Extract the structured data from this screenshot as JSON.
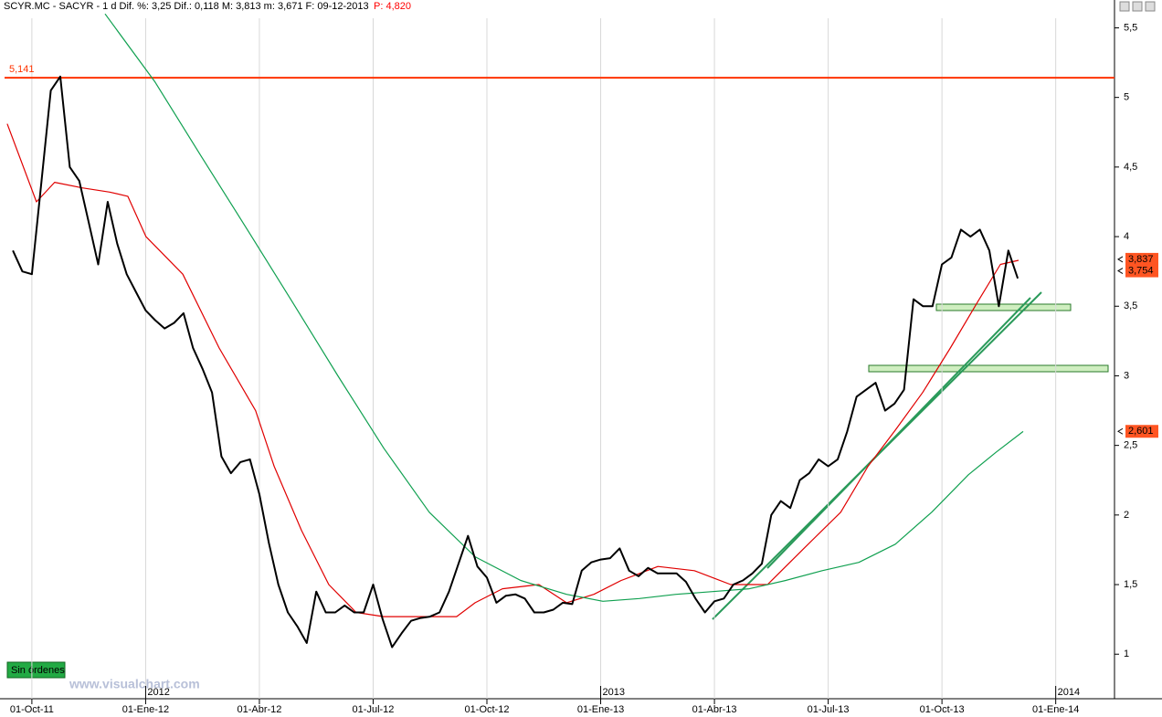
{
  "chart_data": {
    "type": "line",
    "title": "SCYR.MC - SACYR - 1 d Dif. %: 3,25 Dif.: 0,118 M: 3,813 m: 3,671 F: 09-12-2013",
    "subtitle": "P: 4,820",
    "status": "Sin órdenes",
    "watermark": "www.visualchart.com",
    "xlim": [
      -0.72,
      28.55
    ],
    "xticks": [
      {
        "value": 0,
        "label": "01-Oct-11"
      },
      {
        "value": 3,
        "label": "01-Ene-12"
      },
      {
        "value": 6,
        "label": "01-Abr-12"
      },
      {
        "value": 9,
        "label": "01-Jul-12"
      },
      {
        "value": 12,
        "label": "01-Oct-12"
      },
      {
        "value": 15,
        "label": "01-Ene-13"
      },
      {
        "value": 18,
        "label": "01-Abr-13"
      },
      {
        "value": 21,
        "label": "01-Jul-13"
      },
      {
        "value": 24,
        "label": "01-Oct-13"
      },
      {
        "value": 27,
        "label": "01-Ene-14"
      }
    ],
    "year_labels": [
      {
        "value": 3,
        "label": "2012"
      },
      {
        "value": 15,
        "label": "2013"
      },
      {
        "value": 27,
        "label": "2014"
      }
    ],
    "ylim": [
      0.68,
      5.7
    ],
    "yticks": [
      1,
      {
        "value": 1.5,
        "label": "1,5"
      },
      2,
      {
        "value": 2.5,
        "label": "2,5"
      },
      3,
      {
        "value": 3.5,
        "label": "3,5"
      },
      4,
      {
        "value": 4.5,
        "label": "4,5"
      },
      5,
      {
        "value": 5.5,
        "label": "5,5"
      }
    ],
    "grid": "x",
    "series": [
      {
        "name": "SCYR.MC",
        "color": "#000000",
        "x": [
          -0.5,
          -0.25,
          0,
          0.25,
          0.5,
          0.75,
          1,
          1.25,
          1.5,
          1.75,
          2,
          2.25,
          2.5,
          2.75,
          3,
          3.25,
          3.5,
          3.75,
          4,
          4.25,
          4.5,
          4.75,
          5,
          5.25,
          5.5,
          5.75,
          6,
          6.25,
          6.5,
          6.75,
          7,
          7.25,
          7.5,
          7.75,
          8,
          8.25,
          8.5,
          8.75,
          9,
          9.25,
          9.5,
          9.75,
          10,
          10.25,
          10.5,
          10.75,
          11,
          11.25,
          11.5,
          11.75,
          12,
          12.25,
          12.5,
          12.75,
          13,
          13.25,
          13.5,
          13.75,
          14,
          14.25,
          14.5,
          14.75,
          15,
          15.25,
          15.5,
          15.75,
          16,
          16.25,
          16.5,
          16.75,
          17,
          17.25,
          17.5,
          17.75,
          18,
          18.25,
          18.5,
          18.75,
          19,
          19.25,
          19.5,
          19.75,
          20,
          20.25,
          20.5,
          20.75,
          21,
          21.25,
          21.5,
          21.75,
          22,
          22.25,
          22.5,
          22.75,
          23,
          23.25,
          23.5,
          23.75,
          24,
          24.25,
          24.5,
          24.75,
          25,
          25.25,
          25.5,
          25.75,
          26
        ],
        "values": [
          3.9,
          3.75,
          3.73,
          4.39,
          5.05,
          5.15,
          4.5,
          4.4,
          4.1,
          3.8,
          4.25,
          3.95,
          3.73,
          3.6,
          3.47,
          3.4,
          3.34,
          3.38,
          3.45,
          3.2,
          3.05,
          2.88,
          2.42,
          2.3,
          2.38,
          2.4,
          2.15,
          1.8,
          1.5,
          1.3,
          1.2,
          1.08,
          1.45,
          1.3,
          1.3,
          1.35,
          1.3,
          1.3,
          1.5,
          1.25,
          1.05,
          1.15,
          1.24,
          1.26,
          1.27,
          1.3,
          1.45,
          1.65,
          1.85,
          1.63,
          1.55,
          1.37,
          1.42,
          1.43,
          1.4,
          1.3,
          1.3,
          1.32,
          1.37,
          1.36,
          1.6,
          1.66,
          1.68,
          1.69,
          1.76,
          1.6,
          1.56,
          1.62,
          1.58,
          1.58,
          1.58,
          1.52,
          1.4,
          1.3,
          1.38,
          1.4,
          1.5,
          1.53,
          1.58,
          1.65,
          2.0,
          2.1,
          2.05,
          2.25,
          2.3,
          2.4,
          2.35,
          2.4,
          2.6,
          2.85,
          2.9,
          2.95,
          2.75,
          2.8,
          2.9,
          3.55,
          3.5,
          3.5,
          3.8,
          3.85,
          4.05,
          4.0,
          4.05,
          3.9,
          3.5,
          3.9,
          3.7
        ]
      },
      {
        "name": "MA short",
        "color": "#e00000",
        "x": [
          -0.65,
          0.12,
          0.6,
          1.33,
          2.05,
          2.53,
          3.01,
          3.98,
          4.94,
          5.9,
          6.39,
          7.11,
          7.83,
          8.55,
          9.28,
          10.24,
          11.2,
          11.69,
          12.41,
          13.37,
          14.1,
          14.82,
          15.54,
          16.51,
          17.47,
          18.43,
          19.4,
          20.36,
          21.33,
          22.05,
          22.77,
          23.49,
          24.22,
          24.94,
          25.54,
          26.02
        ],
        "values": [
          4.81,
          4.25,
          4.39,
          4.35,
          4.32,
          4.29,
          4.0,
          3.73,
          3.2,
          2.75,
          2.35,
          1.89,
          1.5,
          1.3,
          1.27,
          1.27,
          1.27,
          1.37,
          1.47,
          1.5,
          1.37,
          1.43,
          1.53,
          1.63,
          1.6,
          1.5,
          1.5,
          1.76,
          2.02,
          2.35,
          2.61,
          2.88,
          3.2,
          3.53,
          3.8,
          3.83
        ]
      },
      {
        "name": "MA long",
        "color": "#10a050",
        "x": [
          1.93,
          3.25,
          4.46,
          5.66,
          6.87,
          8.07,
          9.28,
          10.48,
          11.69,
          12.89,
          14.1,
          15.06,
          16.02,
          16.99,
          17.95,
          18.92,
          19.88,
          20.84,
          21.81,
          22.77,
          23.73,
          24.7,
          25.42,
          26.14
        ],
        "values": [
          5.6,
          5.11,
          4.58,
          4.06,
          3.53,
          3.0,
          2.48,
          2.02,
          1.7,
          1.53,
          1.43,
          1.38,
          1.4,
          1.43,
          1.45,
          1.47,
          1.53,
          1.6,
          1.66,
          1.79,
          2.02,
          2.29,
          2.45,
          2.6
        ]
      }
    ],
    "level_line": {
      "value": 5.141,
      "label": "5,141",
      "color": "#ff3300"
    },
    "price_tags": [
      {
        "value": 3.837,
        "label": "3,837",
        "color": "#ff5522"
      },
      {
        "value": 3.754,
        "label": "3,754",
        "color": "#ff5522"
      },
      {
        "value": 2.601,
        "label": "2,601",
        "color": "#ff5522"
      }
    ]
  }
}
